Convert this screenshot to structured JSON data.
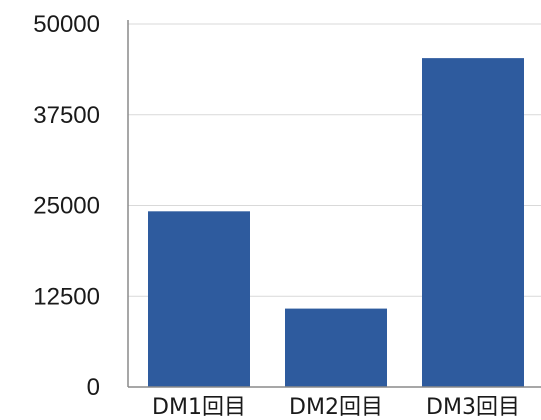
{
  "chart_data": {
    "type": "bar",
    "categories": [
      "DM1回目",
      "DM2回目",
      "DM3回目"
    ],
    "values": [
      24200,
      10800,
      45300
    ],
    "yticks": [
      0,
      12500,
      25000,
      37500,
      50000
    ],
    "ytick_labels": [
      "0",
      "12500",
      "25000",
      "37500",
      "50000"
    ],
    "ylim": [
      0,
      50000
    ],
    "grid": true,
    "colors": {
      "bar": "#2e5b9e",
      "grid": "#d9d9d9",
      "axis": "#8a8a8a"
    }
  }
}
